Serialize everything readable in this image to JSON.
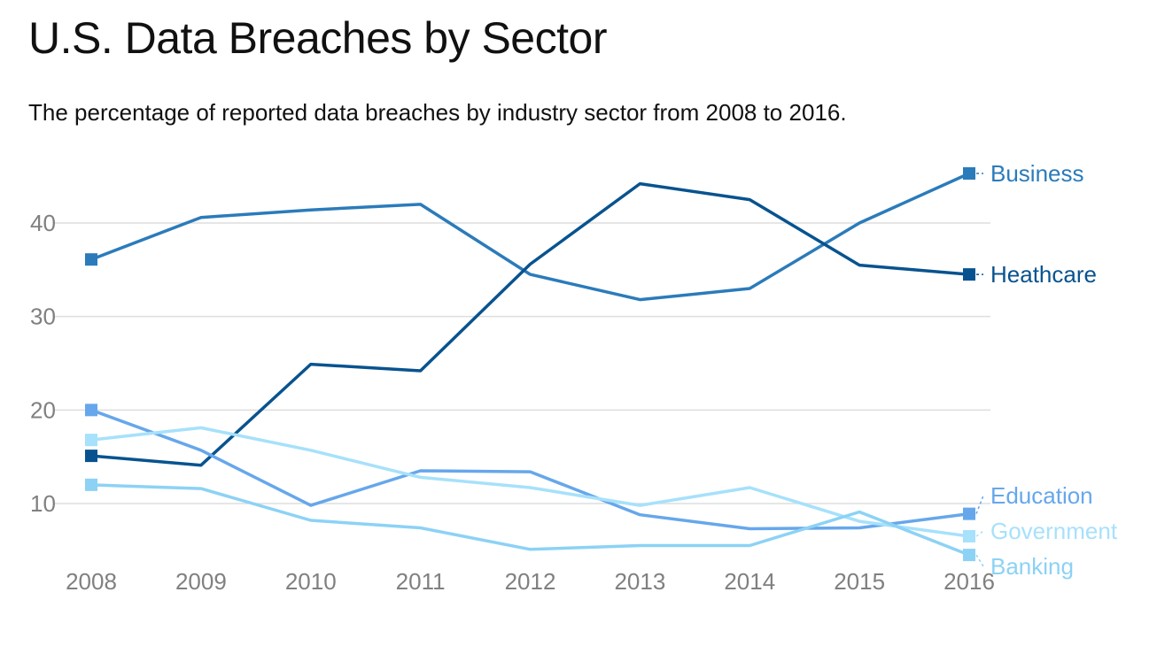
{
  "chart_data": {
    "type": "line",
    "title": "U.S. Data Breaches by Sector",
    "subtitle": "The percentage of reported data breaches by industry sector from 2008 to 2016.",
    "xlabel": "",
    "ylabel": "",
    "x": [
      "2008",
      "2009",
      "2010",
      "2011",
      "2012",
      "2013",
      "2014",
      "2015",
      "2016"
    ],
    "yticks": [
      10,
      20,
      30,
      40
    ],
    "ylim": [
      4,
      47
    ],
    "grid": true,
    "legend": "direct labels at right end of lines",
    "series": [
      {
        "name": "Business",
        "color": "#2b7bba",
        "values": [
          36.1,
          40.6,
          41.4,
          42.0,
          34.5,
          31.8,
          33.0,
          40.0,
          45.3
        ]
      },
      {
        "name": "Heathcare",
        "color": "#08538f",
        "values": [
          15.1,
          14.1,
          24.9,
          24.2,
          35.6,
          44.2,
          42.5,
          35.5,
          34.5
        ]
      },
      {
        "name": "Education",
        "color": "#66a7eb",
        "values": [
          20.0,
          15.7,
          9.8,
          13.5,
          13.4,
          8.8,
          7.3,
          7.4,
          8.9
        ]
      },
      {
        "name": "Government",
        "color": "#a7e1fb",
        "values": [
          16.8,
          18.1,
          15.7,
          12.8,
          11.7,
          9.8,
          11.7,
          8.1,
          6.5
        ]
      },
      {
        "name": "Banking",
        "color": "#8cd2f5",
        "values": [
          12.0,
          11.6,
          8.2,
          7.4,
          5.1,
          5.5,
          5.5,
          9.1,
          4.5
        ]
      }
    ]
  }
}
